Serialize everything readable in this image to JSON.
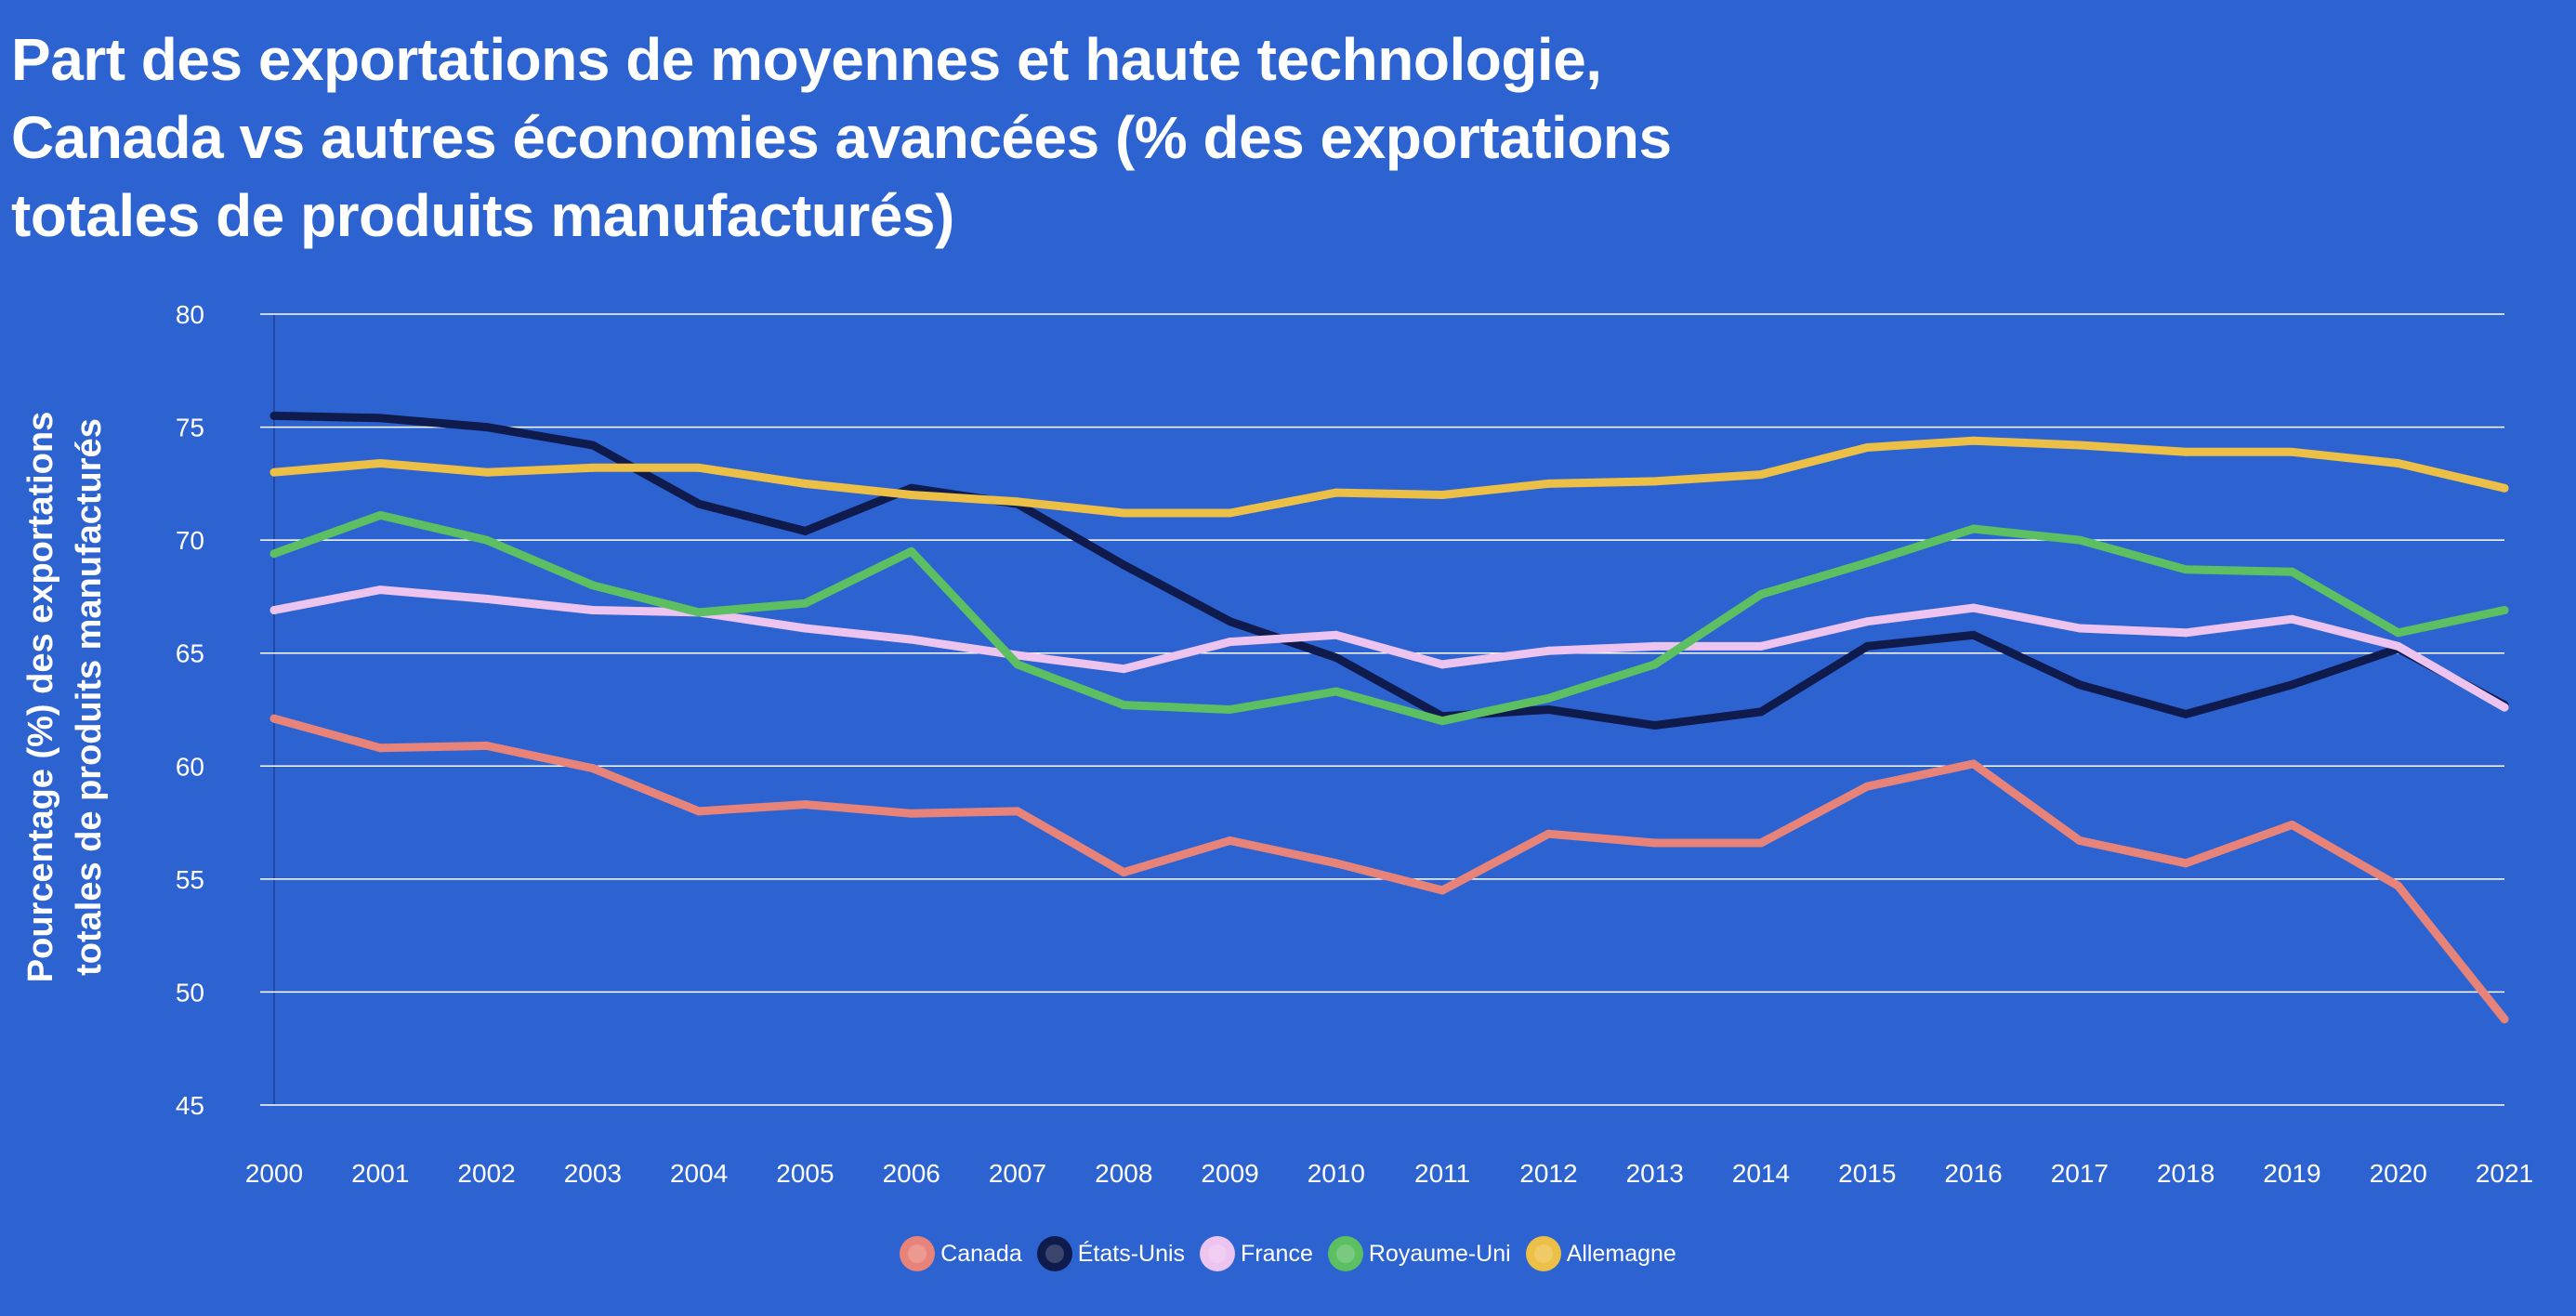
{
  "colors": {
    "background": "#2d63d1",
    "grid": "#ffffff",
    "text": "#ffffff"
  },
  "title_lines": [
    "Part des exportations de moyennes et haute technologie,",
    "Canada vs autres économies avancées (% des exportations",
    "totales de produits manufacturés)"
  ],
  "ylabel_lines": [
    "Pourcentage (%) des exportations",
    "totales de produits manufacturés"
  ],
  "chart_data": {
    "type": "line",
    "title": "Part des exportations de moyennes et haute technologie, Canada vs autres économies avancées (% des exportations totales de produits manufacturés)",
    "xlabel": "",
    "ylabel": "Pourcentage (%) des exportations totales de produits manufacturés",
    "ylim": [
      45,
      80
    ],
    "yticks": [
      "80",
      "75",
      "70",
      "65",
      "60",
      "55",
      "50",
      "45"
    ],
    "grid": true,
    "legend_position": "bottom-center",
    "x": [
      "2000",
      "2001",
      "2002",
      "2003",
      "2004",
      "2005",
      "2006",
      "2007",
      "2008",
      "2009",
      "2010",
      "2011",
      "2012",
      "2013",
      "2014",
      "2015",
      "2016",
      "2017",
      "2018",
      "2019",
      "2020",
      "2021"
    ],
    "series": [
      {
        "name": "Canada",
        "color": "#e8837a",
        "values": [
          62.1,
          60.8,
          60.9,
          59.9,
          58.0,
          58.3,
          57.9,
          58.0,
          55.3,
          56.7,
          55.7,
          54.5,
          57.0,
          56.6,
          56.6,
          59.1,
          60.1,
          56.7,
          55.7,
          57.4,
          54.7,
          48.8
        ]
      },
      {
        "name": "États-Unis",
        "color": "#0f1b4d",
        "values": [
          75.5,
          75.4,
          75.0,
          74.2,
          71.6,
          70.4,
          72.3,
          71.6,
          68.9,
          66.4,
          64.8,
          62.2,
          62.5,
          61.8,
          62.4,
          65.3,
          65.8,
          63.6,
          62.3,
          63.6,
          65.2,
          62.7
        ]
      },
      {
        "name": "France",
        "color": "#ecc4ef",
        "values": [
          66.9,
          67.8,
          67.4,
          66.9,
          66.8,
          66.1,
          65.6,
          64.9,
          64.3,
          65.5,
          65.8,
          64.5,
          65.1,
          65.3,
          65.3,
          66.4,
          67.0,
          66.1,
          65.9,
          66.5,
          65.3,
          62.6
        ]
      },
      {
        "name": "Royaume-Uni",
        "color": "#5cbf62",
        "values": [
          69.4,
          71.1,
          70.0,
          68.0,
          66.8,
          67.2,
          69.5,
          64.5,
          62.7,
          62.5,
          63.3,
          62.0,
          63.0,
          64.5,
          67.6,
          69.0,
          70.5,
          70.0,
          68.7,
          68.6,
          65.9,
          66.9
        ]
      },
      {
        "name": "Allemagne",
        "color": "#ecbf46",
        "values": [
          73.0,
          73.4,
          73.0,
          73.2,
          73.2,
          72.5,
          72.0,
          71.7,
          71.2,
          71.2,
          72.1,
          72.0,
          72.5,
          72.6,
          72.9,
          74.1,
          74.4,
          74.2,
          73.9,
          73.9,
          73.4,
          72.3
        ]
      }
    ]
  }
}
